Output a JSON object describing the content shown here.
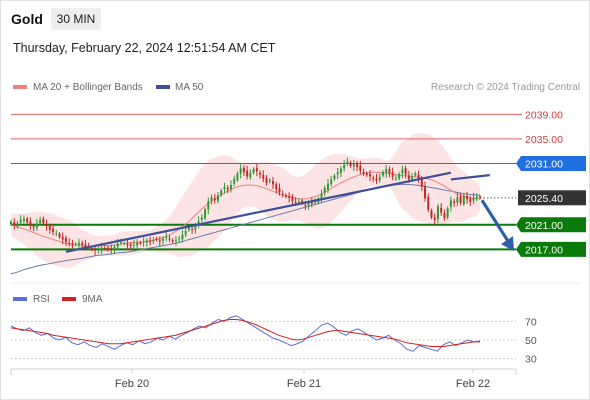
{
  "header": {
    "symbol": "Gold",
    "timeframe": "30 MIN",
    "datetime": "Thursday, February 22, 2024 12:51:54 AM CET"
  },
  "legend": {
    "ma20_label": "MA 20 + Bollinger Bands",
    "ma50_label": "MA 50",
    "credit": "Research © 2024 Trading Central",
    "rsi_label": "RSI",
    "rsi_ma_label": "9MA"
  },
  "colors": {
    "ma20": "#f08080",
    "bollinger_fill": "#fde4e4",
    "ma50": "#6b7bb0",
    "trendline": "#3f4f9b",
    "bull_candle": "#2e9b3a",
    "bear_candle": "#c62828",
    "resistance": "#e06060",
    "pivot": "#1f6fe0",
    "support": "#0a7a0a",
    "current": "#333333",
    "arrow": "#2e5ea6",
    "rsi": "#5b6fd6",
    "rsi_ma": "#d42020"
  },
  "chart_data": [
    {
      "type": "candlestick",
      "title": "Gold",
      "timeframe": "30 MIN",
      "x_tick_labels": [
        "Feb 20",
        "Feb 21",
        "Feb 22"
      ],
      "ylim": [
        2012,
        2042
      ],
      "levels": [
        {
          "label": "2039.00",
          "value": 2039.0,
          "kind": "resistance"
        },
        {
          "label": "2035.00",
          "value": 2035.0,
          "kind": "resistance"
        },
        {
          "label": "2031.00",
          "value": 2031.0,
          "kind": "pivot"
        },
        {
          "label": "2025.40",
          "value": 2025.4,
          "kind": "current"
        },
        {
          "label": "2021.00",
          "value": 2021.0,
          "kind": "support"
        },
        {
          "label": "2017.00",
          "value": 2017.0,
          "kind": "support"
        }
      ],
      "series_names": [
        "MA 20 + Bollinger Bands",
        "MA 50"
      ],
      "price_path": [
        2021.5,
        2021.0,
        2021.2,
        2021.8,
        2022.0,
        2021.4,
        2021.0,
        2020.6,
        2021.2,
        2021.8,
        2021.3,
        2020.8,
        2020.2,
        2019.8,
        2019.6,
        2019.0,
        2018.6,
        2018.2,
        2018.0,
        2017.6,
        2017.9,
        2018.1,
        2017.7,
        2017.3,
        2017.4,
        2017.0,
        2016.8,
        2017.0,
        2017.3,
        2017.2,
        2016.9,
        2017.1,
        2017.4,
        2017.9,
        2018.2,
        2018.0,
        2017.7,
        2017.5,
        2017.8,
        2018.1,
        2018.0,
        2018.3,
        2018.4,
        2018.2,
        2018.5,
        2018.6,
        2018.4,
        2018.7,
        2019.0,
        2018.6,
        2018.3,
        2018.5,
        2018.8,
        2019.4,
        2020.0,
        2020.6,
        2020.3,
        2020.9,
        2021.6,
        2022.2,
        2023.5,
        2024.8,
        2025.5,
        2025.0,
        2025.8,
        2026.6,
        2027.2,
        2026.8,
        2027.5,
        2028.5,
        2029.4,
        2030.2,
        2029.6,
        2028.9,
        2029.5,
        2030.1,
        2029.7,
        2029.2,
        2028.5,
        2027.8,
        2028.3,
        2027.6,
        2026.8,
        2026.3,
        2025.9,
        2025.6,
        2025.4,
        2024.9,
        2024.6,
        2024.8,
        2024.5,
        2024.2,
        2024.6,
        2024.4,
        2024.8,
        2025.3,
        2026.1,
        2027.0,
        2027.7,
        2028.4,
        2029.0,
        2029.6,
        2030.2,
        2030.8,
        2031.4,
        2030.6,
        2030.9,
        2030.4,
        2029.8,
        2029.4,
        2029.1,
        2028.9,
        2028.6,
        2028.2,
        2028.8,
        2029.6,
        2030.1,
        2029.4,
        2028.8,
        2028.6,
        2029.3,
        2030.0,
        2029.2,
        2028.4,
        2028.9,
        2029.4,
        2028.6,
        2027.2,
        2025.3,
        2023.5,
        2022.2,
        2021.8,
        2024.0,
        2023.0,
        2022.1,
        2023.7,
        2025.0,
        2024.6,
        2025.5,
        2024.6,
        2025.8,
        2025.2,
        2024.7,
        2025.4,
        2025.6,
        2025.4
      ],
      "ma50_path": [
        2013.0,
        2013.3,
        2013.7,
        2014.0,
        2014.3,
        2014.5,
        2014.7,
        2014.9,
        2015.1,
        2015.3,
        2015.4,
        2015.6,
        2015.8,
        2016.0,
        2016.1,
        2016.2,
        2016.4,
        2016.5,
        2016.6,
        2016.8,
        2017.0,
        2017.2,
        2017.4,
        2017.6,
        2017.8,
        2018.0,
        2018.3,
        2018.6,
        2018.9,
        2019.2,
        2019.5,
        2019.8,
        2020.1,
        2020.4,
        2020.7,
        2021.0,
        2021.3,
        2021.6,
        2021.9,
        2022.2,
        2022.5,
        2022.8,
        2023.1,
        2023.4,
        2023.7,
        2024.0,
        2024.3,
        2024.6,
        2024.9,
        2025.2,
        2025.5,
        2025.8,
        2026.1,
        2026.4,
        2026.7,
        2027.0,
        2027.2,
        2027.4,
        2027.5,
        2027.6,
        2027.6,
        2027.5,
        2027.4,
        2027.2,
        2027.0,
        2026.8,
        2026.6,
        2026.4,
        2026.2,
        2026.0,
        2025.9,
        2025.8
      ],
      "ma20_path": [
        2021.0,
        2020.6,
        2020.2,
        2019.7,
        2019.2,
        2018.8,
        2018.4,
        2018.0,
        2017.8,
        2017.6,
        2017.5,
        2017.5,
        2017.6,
        2017.6,
        2017.8,
        2018.0,
        2018.1,
        2018.2,
        2018.4,
        2018.6,
        2019.0,
        2019.6,
        2020.4,
        2021.4,
        2022.6,
        2023.8,
        2024.8,
        2025.6,
        2026.4,
        2027.0,
        2027.4,
        2027.5,
        2027.4,
        2027.0,
        2026.5,
        2026.0,
        2025.6,
        2025.3,
        2025.2,
        2025.4,
        2025.8,
        2026.4,
        2027.2,
        2027.9,
        2028.5,
        2029.0,
        2029.4,
        2029.6,
        2029.5,
        2029.4,
        2029.2,
        2029.0,
        2028.9,
        2028.8,
        2028.6,
        2028.2,
        2027.6,
        2026.8,
        2026.0,
        2025.6,
        2025.3,
        2025.2
      ],
      "trendlines": [
        {
          "from": {
            "bar": 17,
            "price": 2016.6
          },
          "to": {
            "bar": 136,
            "price": 2029.5
          }
        },
        {
          "from": {
            "bar": 136,
            "price": 2028.4
          },
          "to": {
            "bar": 148,
            "price": 2029.1
          }
        }
      ],
      "arrow": {
        "from": 2025.0,
        "to": 2017.2,
        "direction": "down"
      }
    },
    {
      "type": "line",
      "title": "RSI",
      "series_names": [
        "RSI",
        "9MA"
      ],
      "y_tick_labels": [
        "70",
        "50",
        "30"
      ],
      "y_ticks": [
        70,
        50,
        30
      ],
      "ylim": [
        20,
        80
      ],
      "rsi": [
        65,
        62,
        60,
        63,
        58,
        55,
        57,
        52,
        50,
        53,
        47,
        45,
        48,
        44,
        42,
        46,
        43,
        40,
        44,
        47,
        45,
        49,
        46,
        48,
        52,
        50,
        54,
        51,
        55,
        58,
        62,
        65,
        63,
        68,
        72,
        70,
        74,
        76,
        72,
        68,
        64,
        60,
        56,
        52,
        50,
        47,
        44,
        46,
        49,
        55,
        60,
        66,
        68,
        64,
        58,
        55,
        60,
        62,
        58,
        54,
        50,
        52,
        55,
        50,
        46,
        40,
        38,
        44,
        42,
        40,
        38,
        45,
        48,
        44,
        47,
        50,
        48,
        49
      ],
      "rsi_ma": [
        63,
        62,
        61,
        60,
        59,
        58,
        57,
        55,
        54,
        53,
        52,
        51,
        50,
        49,
        48,
        47,
        46,
        46,
        46,
        47,
        48,
        49,
        50,
        51,
        52,
        53,
        54,
        55,
        57,
        59,
        61,
        63,
        65,
        67,
        69,
        71,
        72,
        72,
        71,
        69,
        67,
        64,
        61,
        58,
        55,
        53,
        51,
        50,
        51,
        53,
        55,
        57,
        59,
        60,
        60,
        59,
        58,
        57,
        56,
        55,
        54,
        53,
        52,
        51,
        49,
        47,
        46,
        45,
        44,
        43,
        43,
        43,
        44,
        45,
        46,
        47,
        48,
        48
      ]
    }
  ]
}
